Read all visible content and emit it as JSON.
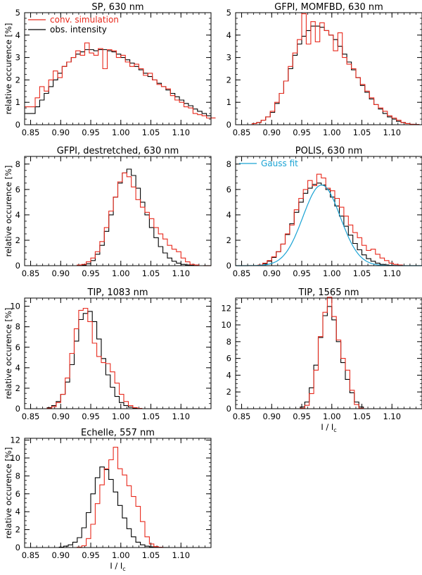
{
  "chart_data": [
    {
      "type": "line",
      "step": true,
      "title": "SP, 630 nm",
      "ylabel": "relative occurence [%]",
      "xlabel": "",
      "xlim": [
        0.84,
        1.15
      ],
      "ylim": [
        0,
        5
      ],
      "xticks": [
        "0.85",
        "0.90",
        "0.95",
        "1.00",
        "1.05",
        "1.10"
      ],
      "yticks": [
        "0",
        "1",
        "2",
        "3",
        "4",
        "5"
      ],
      "legend": {
        "position": "top-left",
        "entries": [
          {
            "label": "conv. simulation",
            "color": "#e8291c"
          },
          {
            "label": "obs. intensity",
            "color": "#000000"
          }
        ]
      },
      "series": [
        {
          "name": "conv. simulation",
          "color": "#e8291c",
          "x0": 0.85,
          "dx": 0.0075,
          "values": [
            0.8,
            1.2,
            1.7,
            1.5,
            2.0,
            2.4,
            2.1,
            2.6,
            2.8,
            3.0,
            3.3,
            3.1,
            3.65,
            3.2,
            3.1,
            3.4,
            2.5,
            3.35,
            3.3,
            3.0,
            3.1,
            2.8,
            2.6,
            2.7,
            2.5,
            2.2,
            2.3,
            2.0,
            1.8,
            1.7,
            1.6,
            1.3,
            1.1,
            1.0,
            0.8,
            0.75,
            0.5,
            0.45,
            0.4,
            0.3,
            0.3
          ]
        },
        {
          "name": "obs. intensity",
          "color": "#000000",
          "x0": 0.85,
          "dx": 0.0075,
          "values": [
            0.5,
            0.8,
            1.1,
            1.4,
            1.7,
            2.0,
            2.3,
            2.6,
            2.8,
            3.0,
            3.15,
            3.25,
            3.35,
            3.35,
            3.3,
            3.35,
            3.35,
            3.3,
            3.25,
            3.15,
            3.0,
            2.9,
            2.75,
            2.6,
            2.45,
            2.3,
            2.15,
            2.0,
            1.85,
            1.7,
            1.55,
            1.4,
            1.25,
            1.1,
            0.95,
            0.85,
            0.7,
            0.6,
            0.5,
            0.4,
            0.3
          ]
        }
      ]
    },
    {
      "type": "line",
      "step": true,
      "title": "GFPI, MOMFBD, 630 nm",
      "ylabel": "",
      "xlabel": "",
      "xlim": [
        0.84,
        1.15
      ],
      "ylim": [
        0,
        5
      ],
      "xticks": [
        "0.85",
        "0.90",
        "0.95",
        "1.00",
        "1.05",
        "1.10"
      ],
      "yticks": [
        "0",
        "1",
        "2",
        "3",
        "4",
        "5"
      ],
      "series": [
        {
          "name": "conv. simulation",
          "color": "#e8291c",
          "x0": 0.86,
          "dx": 0.0075,
          "values": [
            0,
            0.05,
            0.1,
            0.2,
            0.35,
            0.6,
            1.0,
            1.4,
            1.95,
            2.6,
            3.2,
            3.8,
            4.95,
            3.6,
            4.6,
            3.7,
            4.55,
            4.2,
            4.0,
            3.3,
            4.1,
            3.0,
            2.7,
            2.5,
            2.1,
            1.8,
            1.5,
            1.2,
            0.9,
            0.75,
            0.6,
            0.4,
            0.3,
            0.2,
            0.1,
            0.05,
            0.02,
            0.01,
            0
          ]
        },
        {
          "name": "obs. intensity",
          "color": "#000000",
          "x0": 0.86,
          "dx": 0.0075,
          "values": [
            0,
            0.05,
            0.1,
            0.2,
            0.35,
            0.55,
            0.95,
            1.4,
            1.95,
            2.5,
            3.1,
            3.6,
            3.95,
            4.2,
            4.4,
            4.4,
            4.35,
            4.2,
            4.0,
            3.8,
            3.5,
            3.15,
            2.8,
            2.45,
            2.1,
            1.75,
            1.45,
            1.15,
            0.9,
            0.7,
            0.5,
            0.35,
            0.25,
            0.15,
            0.1,
            0.05,
            0.02,
            0.01,
            0
          ]
        }
      ]
    },
    {
      "type": "line",
      "step": true,
      "title": "GFPI, destretched, 630 nm",
      "ylabel": "relative occurence [%]",
      "xlabel": "",
      "xlim": [
        0.84,
        1.15
      ],
      "ylim": [
        0,
        8.6
      ],
      "xticks": [
        "0.85",
        "0.90",
        "0.95",
        "1.00",
        "1.05",
        "1.10"
      ],
      "yticks": [
        "0",
        "2",
        "4",
        "6",
        "8"
      ],
      "series": [
        {
          "name": "conv. simulation",
          "color": "#e8291c",
          "x0": 0.92,
          "dx": 0.0075,
          "values": [
            0,
            0.05,
            0.1,
            0.3,
            0.6,
            1.1,
            1.9,
            3.0,
            4.3,
            5.4,
            6.6,
            7.3,
            7.0,
            6.2,
            5.2,
            4.6,
            4.2,
            3.7,
            3.0,
            2.5,
            2.1,
            1.6,
            1.3,
            1.1,
            0.6,
            0.3,
            0.1,
            0.05,
            0
          ]
        },
        {
          "name": "obs. intensity",
          "color": "#000000",
          "x0": 0.92,
          "dx": 0.0075,
          "values": [
            0,
            0.02,
            0.05,
            0.15,
            0.4,
            0.9,
            1.6,
            2.7,
            4.0,
            5.4,
            6.5,
            7.3,
            7.6,
            7.1,
            6.1,
            5.0,
            4.0,
            3.0,
            2.2,
            1.5,
            1.0,
            0.6,
            0.35,
            0.2,
            0.1,
            0.05,
            0.02,
            0.01,
            0
          ]
        }
      ]
    },
    {
      "type": "line",
      "step": true,
      "title": "POLIS, 630 nm",
      "ylabel": "",
      "xlabel": "",
      "xlim": [
        0.84,
        1.15
      ],
      "ylim": [
        0,
        8.6
      ],
      "xticks": [
        "0.85",
        "0.90",
        "0.95",
        "1.00",
        "1.05",
        "1.10"
      ],
      "yticks": [
        "0",
        "2",
        "4",
        "6",
        "8"
      ],
      "legend": {
        "position": "top-left",
        "entries": [
          {
            "label": "Gauss fit",
            "color": "#1aa3d4"
          }
        ]
      },
      "gauss_fit": {
        "mean": 0.983,
        "sigma": 0.031,
        "amplitude": 6.35,
        "color": "#1aa3d4"
      },
      "series": [
        {
          "name": "conv. simulation",
          "color": "#e8291c",
          "x0": 0.87,
          "dx": 0.0075,
          "values": [
            0,
            0.05,
            0.2,
            0.4,
            0.7,
            1.1,
            1.7,
            2.5,
            3.2,
            4.4,
            5.3,
            6.0,
            6.7,
            6.3,
            7.2,
            6.9,
            6.1,
            5.9,
            5.3,
            4.6,
            3.9,
            3.2,
            2.6,
            2.2,
            1.6,
            1.2,
            1.3,
            0.9,
            0.6,
            0.4,
            0.2,
            0.1,
            0.05,
            0
          ]
        },
        {
          "name": "obs. intensity",
          "color": "#000000",
          "x0": 0.87,
          "dx": 0.0075,
          "values": [
            0,
            0.05,
            0.15,
            0.35,
            0.65,
            1.1,
            1.7,
            2.45,
            3.3,
            4.2,
            5.0,
            5.7,
            6.1,
            6.4,
            6.5,
            6.35,
            6.0,
            5.4,
            4.7,
            3.9,
            3.1,
            2.4,
            1.75,
            1.25,
            0.85,
            0.55,
            0.35,
            0.2,
            0.1,
            0.05,
            0.02,
            0.01,
            0.01,
            0
          ]
        }
      ]
    },
    {
      "type": "line",
      "step": true,
      "title": "TIP, 1083 nm",
      "ylabel": "relative occurence [%]",
      "xlabel": "",
      "xlim": [
        0.84,
        1.15
      ],
      "ylim": [
        0,
        10.8
      ],
      "xticks": [
        "0.85",
        "0.90",
        "0.95",
        "1.00",
        "1.05",
        "1.10"
      ],
      "yticks": [
        "0",
        "2",
        "4",
        "6",
        "8",
        "10"
      ],
      "series": [
        {
          "name": "conv. simulation",
          "color": "#e8291c",
          "x0": 0.87,
          "dx": 0.0075,
          "values": [
            0,
            0.05,
            0.2,
            0.6,
            1.4,
            3.0,
            5.4,
            7.8,
            9.6,
            9.8,
            8.5,
            6.4,
            5.1,
            4.5,
            4.4,
            3.6,
            2.5,
            1.4,
            0.7,
            0.3,
            0.1,
            0.03,
            0
          ]
        },
        {
          "name": "obs. intensity",
          "color": "#000000",
          "x0": 0.87,
          "dx": 0.0075,
          "values": [
            0,
            0.1,
            0.3,
            0.7,
            1.4,
            2.6,
            4.3,
            6.6,
            8.7,
            9.3,
            9.5,
            8.5,
            6.8,
            4.9,
            3.3,
            2.1,
            1.2,
            0.6,
            0.3,
            0.15,
            0.05,
            0.02,
            0
          ]
        }
      ]
    },
    {
      "type": "line",
      "step": true,
      "title": "TIP, 1565 nm",
      "ylabel": "",
      "xlabel": "I / I_c",
      "xlim": [
        0.84,
        1.15
      ],
      "ylim": [
        0,
        13.2
      ],
      "xticks": [
        "0.85",
        "0.90",
        "0.95",
        "1.00",
        "1.05",
        "1.10"
      ],
      "yticks": [
        "0",
        "2",
        "4",
        "6",
        "8",
        "10",
        "12"
      ],
      "series": [
        {
          "name": "conv. simulation",
          "color": "#e8291c",
          "x0": 0.94,
          "dx": 0.0075,
          "values": [
            0,
            0.05,
            0.4,
            1.8,
            4.6,
            8.6,
            11.5,
            13.3,
            11.0,
            8.2,
            6.0,
            4.6,
            2.2,
            0.5,
            0.05,
            0
          ]
        },
        {
          "name": "obs. intensity",
          "color": "#000000",
          "x0": 0.94,
          "dx": 0.0075,
          "values": [
            0,
            0.2,
            0.8,
            2.5,
            5.2,
            8.5,
            11.1,
            12.2,
            10.6,
            8.0,
            5.5,
            3.5,
            1.9,
            0.8,
            0.2,
            0
          ]
        }
      ]
    },
    {
      "type": "line",
      "step": true,
      "title": "Echelle, 557 nm",
      "ylabel": "relative occurence [%]",
      "xlabel": "I / I_c",
      "xlim": [
        0.84,
        1.15
      ],
      "ylim": [
        0,
        12.2
      ],
      "xticks": [
        "0.85",
        "0.90",
        "0.95",
        "1.00",
        "1.05",
        "1.10"
      ],
      "yticks": [
        "0",
        "2",
        "4",
        "6",
        "8",
        "10",
        "12"
      ],
      "series": [
        {
          "name": "conv. simulation",
          "color": "#e8291c",
          "x0": 0.92,
          "dx": 0.0075,
          "values": [
            0,
            0.05,
            0.2,
            1.0,
            2.6,
            4.9,
            7.0,
            8.8,
            9.8,
            11.2,
            8.8,
            8.1,
            6.9,
            5.7,
            4.6,
            2.9,
            1.2,
            0.4,
            0.1,
            0.02,
            0
          ]
        },
        {
          "name": "obs. intensity",
          "color": "#000000",
          "x0": 0.89,
          "dx": 0.0075,
          "values": [
            0,
            0.05,
            0.15,
            0.3,
            0.6,
            1.1,
            2.2,
            3.9,
            6.0,
            7.8,
            9.0,
            8.7,
            7.6,
            6.2,
            4.7,
            3.3,
            2.1,
            1.2,
            0.6,
            0.3,
            0.15,
            0.08,
            0.04,
            0.02,
            0.01,
            0
          ]
        }
      ]
    }
  ]
}
